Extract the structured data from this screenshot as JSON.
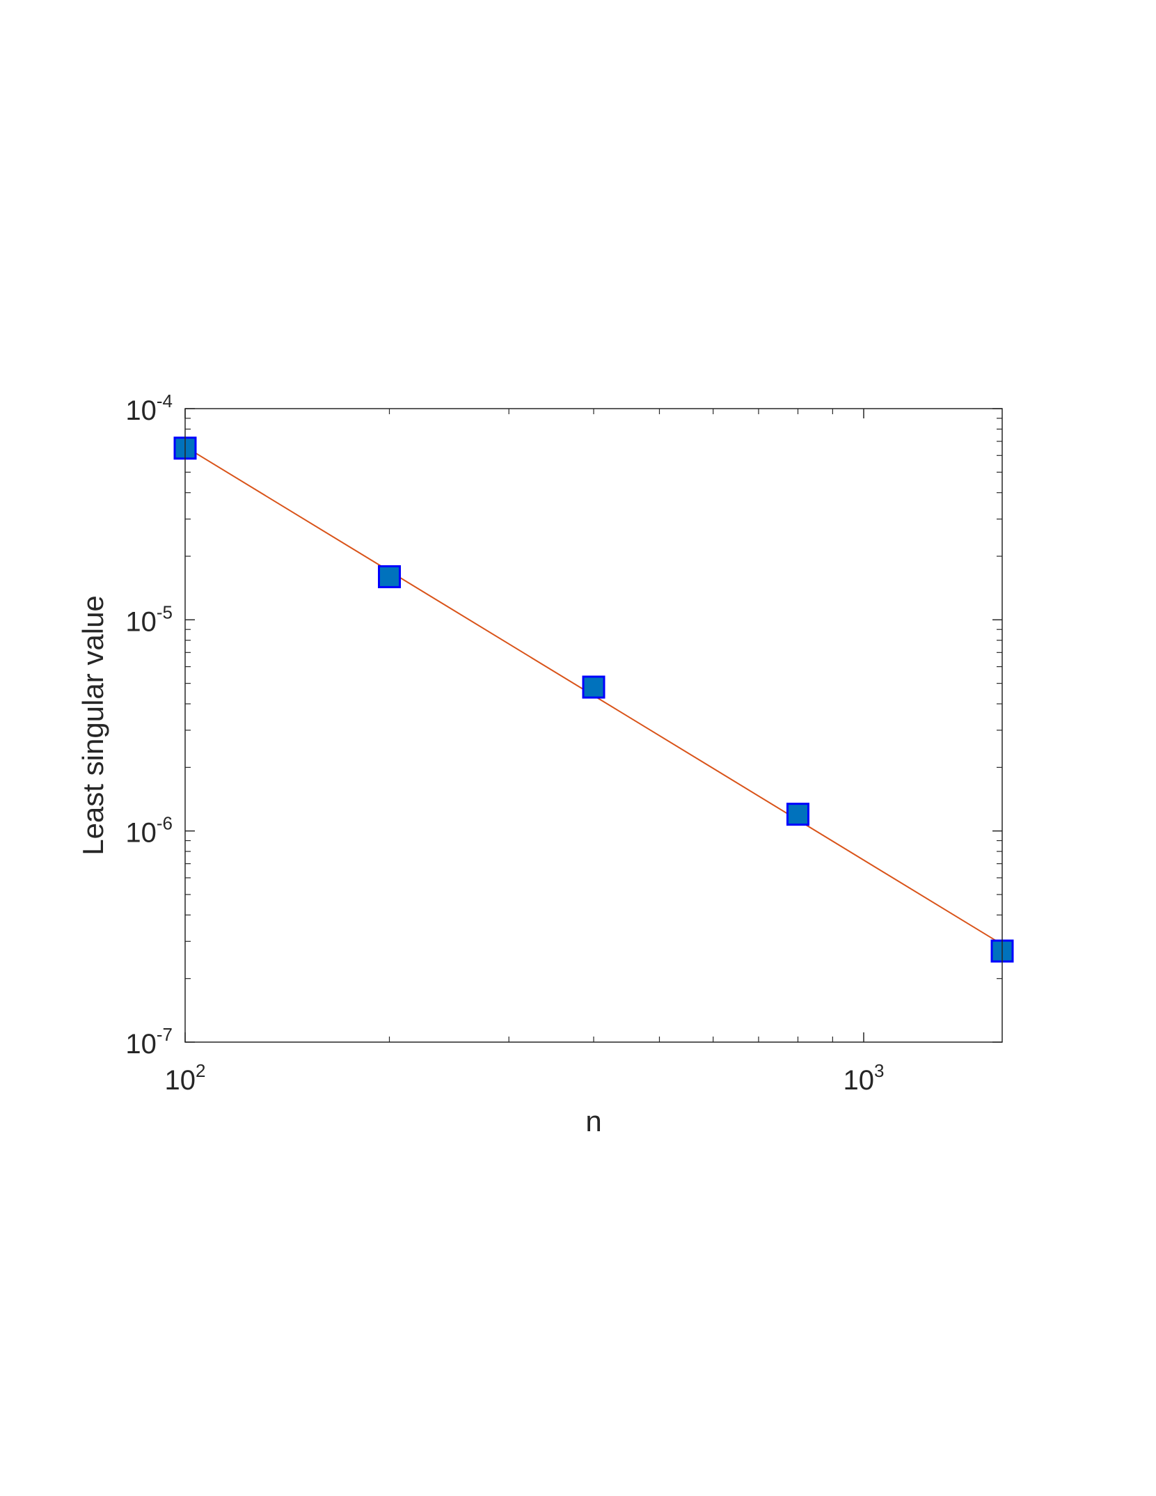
{
  "chart_data": {
    "type": "scatter",
    "xscale": "log",
    "yscale": "log",
    "xlim": [
      100,
      1600
    ],
    "ylim": [
      1e-07,
      0.0001
    ],
    "xlabel": "n",
    "ylabel": "Least singular value",
    "grid": false,
    "x_ticks": [
      {
        "value": 100,
        "base": "10",
        "exp": "2"
      },
      {
        "value": 1000,
        "base": "10",
        "exp": "3"
      }
    ],
    "y_ticks": [
      {
        "value": 1e-07,
        "base": "10",
        "exp": "-7"
      },
      {
        "value": 1e-06,
        "base": "10",
        "exp": "-6"
      },
      {
        "value": 1e-05,
        "base": "10",
        "exp": "-5"
      },
      {
        "value": 0.0001,
        "base": "10",
        "exp": "-4"
      }
    ],
    "series": [
      {
        "kind": "markers",
        "marker": "square",
        "x": [
          100,
          200,
          400,
          800,
          1600
        ],
        "y": [
          6.5e-05,
          1.6e-05,
          4.8e-06,
          1.2e-06,
          2.7e-07
        ]
      },
      {
        "kind": "fit-line",
        "x": [
          100,
          1600
        ],
        "y": [
          6.6e-05,
          2.9e-07
        ]
      }
    ],
    "colors": {
      "marker_fill": "#0072BD",
      "marker_edge": "#0000FF",
      "line": "#D95319",
      "axes": "#262626"
    }
  }
}
